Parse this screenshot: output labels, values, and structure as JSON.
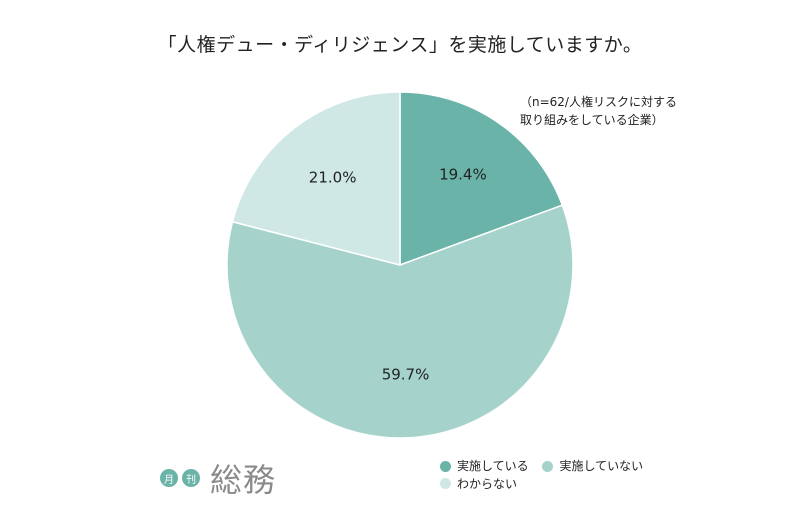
{
  "chart_data": {
    "type": "pie",
    "title": "「人権デュー・ディリジェンス」を実施していますか。",
    "note_lines": [
      "（n=62/人権リスクに対する",
      "取り組みをしている企業）"
    ],
    "categories": [
      "実施している",
      "実施していない",
      "わからない"
    ],
    "values": [
      19.4,
      59.7,
      21.0
    ],
    "labels": [
      "19.4%",
      "59.7%",
      "21.0%"
    ],
    "colors": [
      "#6ab3a8",
      "#a5d3cc",
      "#cfe8e5"
    ],
    "start_angle": "12 o'clock, clockwise",
    "legend_position": "bottom-right"
  },
  "logo": {
    "badge_1": "月",
    "badge_2": "刊",
    "word": "総務"
  }
}
